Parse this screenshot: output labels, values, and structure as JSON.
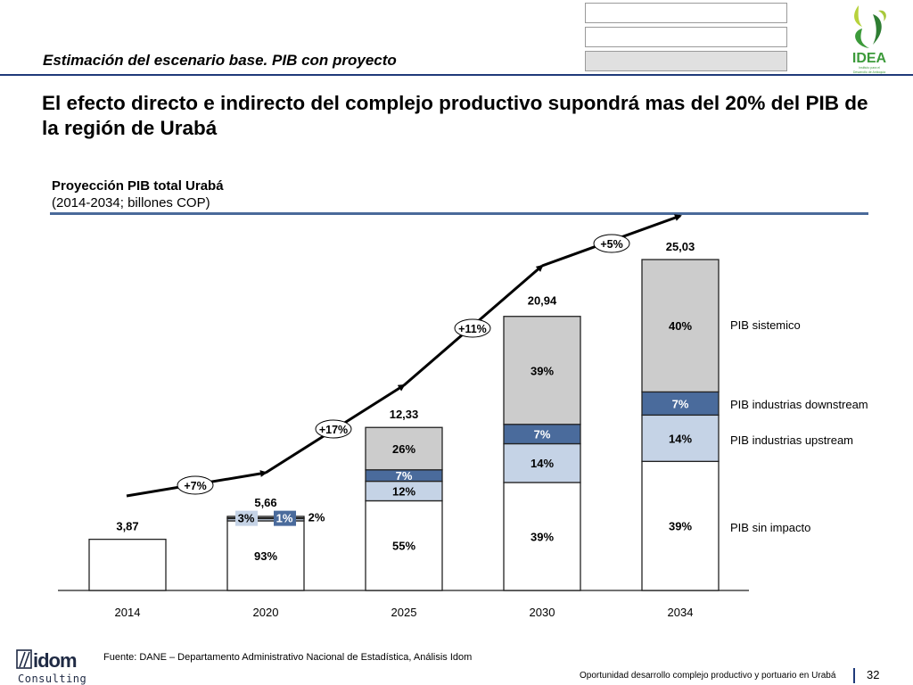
{
  "header": {
    "section_title": "Estimación del escenario base.  PIB con proyecto",
    "headline": "El efecto directo e indirecto del complejo productivo supondrá mas del 20% del PIB de la región de Urabá",
    "logo": {
      "name": "IDEA",
      "tagline_1": "Instituto para el",
      "tagline_2": "Desarrollo de Antioquia"
    }
  },
  "colors": {
    "rule": "#1f3a7a",
    "sin_impacto": "#ffffff",
    "upstream": "#c5d3e6",
    "downstream": "#4a6b9c",
    "sistemico": "#cccccc",
    "idea_green": "#3c9a3a",
    "idea_lime": "#a8c83a"
  },
  "chart_data": {
    "type": "bar",
    "stacked": true,
    "title": "Proyección PIB total Urabá",
    "subtitle": "(2014-2034; billones COP)",
    "xlabel": "",
    "ylabel": "",
    "categories": [
      "2014",
      "2020",
      "2025",
      "2030",
      "2034"
    ],
    "totals": [
      3.87,
      5.66,
      12.33,
      20.94,
      25.03
    ],
    "total_labels": [
      "3,87",
      "5,66",
      "12,33",
      "20,94",
      "25,03"
    ],
    "ylim": [
      0,
      25.03
    ],
    "grid": false,
    "series": [
      {
        "name": "PIB sin impacto",
        "shares": [
          100,
          93,
          55,
          39,
          39
        ],
        "labels": [
          "",
          "93%",
          "55%",
          "39%",
          "39%"
        ]
      },
      {
        "name": "PIB industrias upstream",
        "shares": [
          0,
          3,
          12,
          14,
          14
        ],
        "labels": [
          "",
          "3%",
          "12%",
          "14%",
          "14%"
        ]
      },
      {
        "name": "PIB industrias downstream",
        "shares": [
          0,
          1,
          7,
          7,
          7
        ],
        "labels": [
          "",
          "1%",
          "7%",
          "7%",
          "7%"
        ]
      },
      {
        "name": "PIB sistemico",
        "shares": [
          0,
          2,
          26,
          39,
          40
        ],
        "labels": [
          "",
          "2%",
          "26%",
          "39%",
          "40%"
        ]
      }
    ],
    "legend": [
      "PIB sistemico",
      "PIB industrias downstream",
      "PIB industrias upstream",
      "PIB sin impacto"
    ],
    "legend_placement": "right",
    "growth_arrow": {
      "labels": [
        "+7%",
        "+17%",
        "+11%",
        "+5%"
      ],
      "description": "CAGR between consecutive periods"
    }
  },
  "footer": {
    "source": "Fuente: DANE – Departamento Administrativo Nacional de Estadística, Análisis Idom",
    "document": "Oportunidad desarrollo complejo productivo y portuario en Urabá",
    "page": "32",
    "logo_name": "idom",
    "logo_sub": "Consulting"
  }
}
